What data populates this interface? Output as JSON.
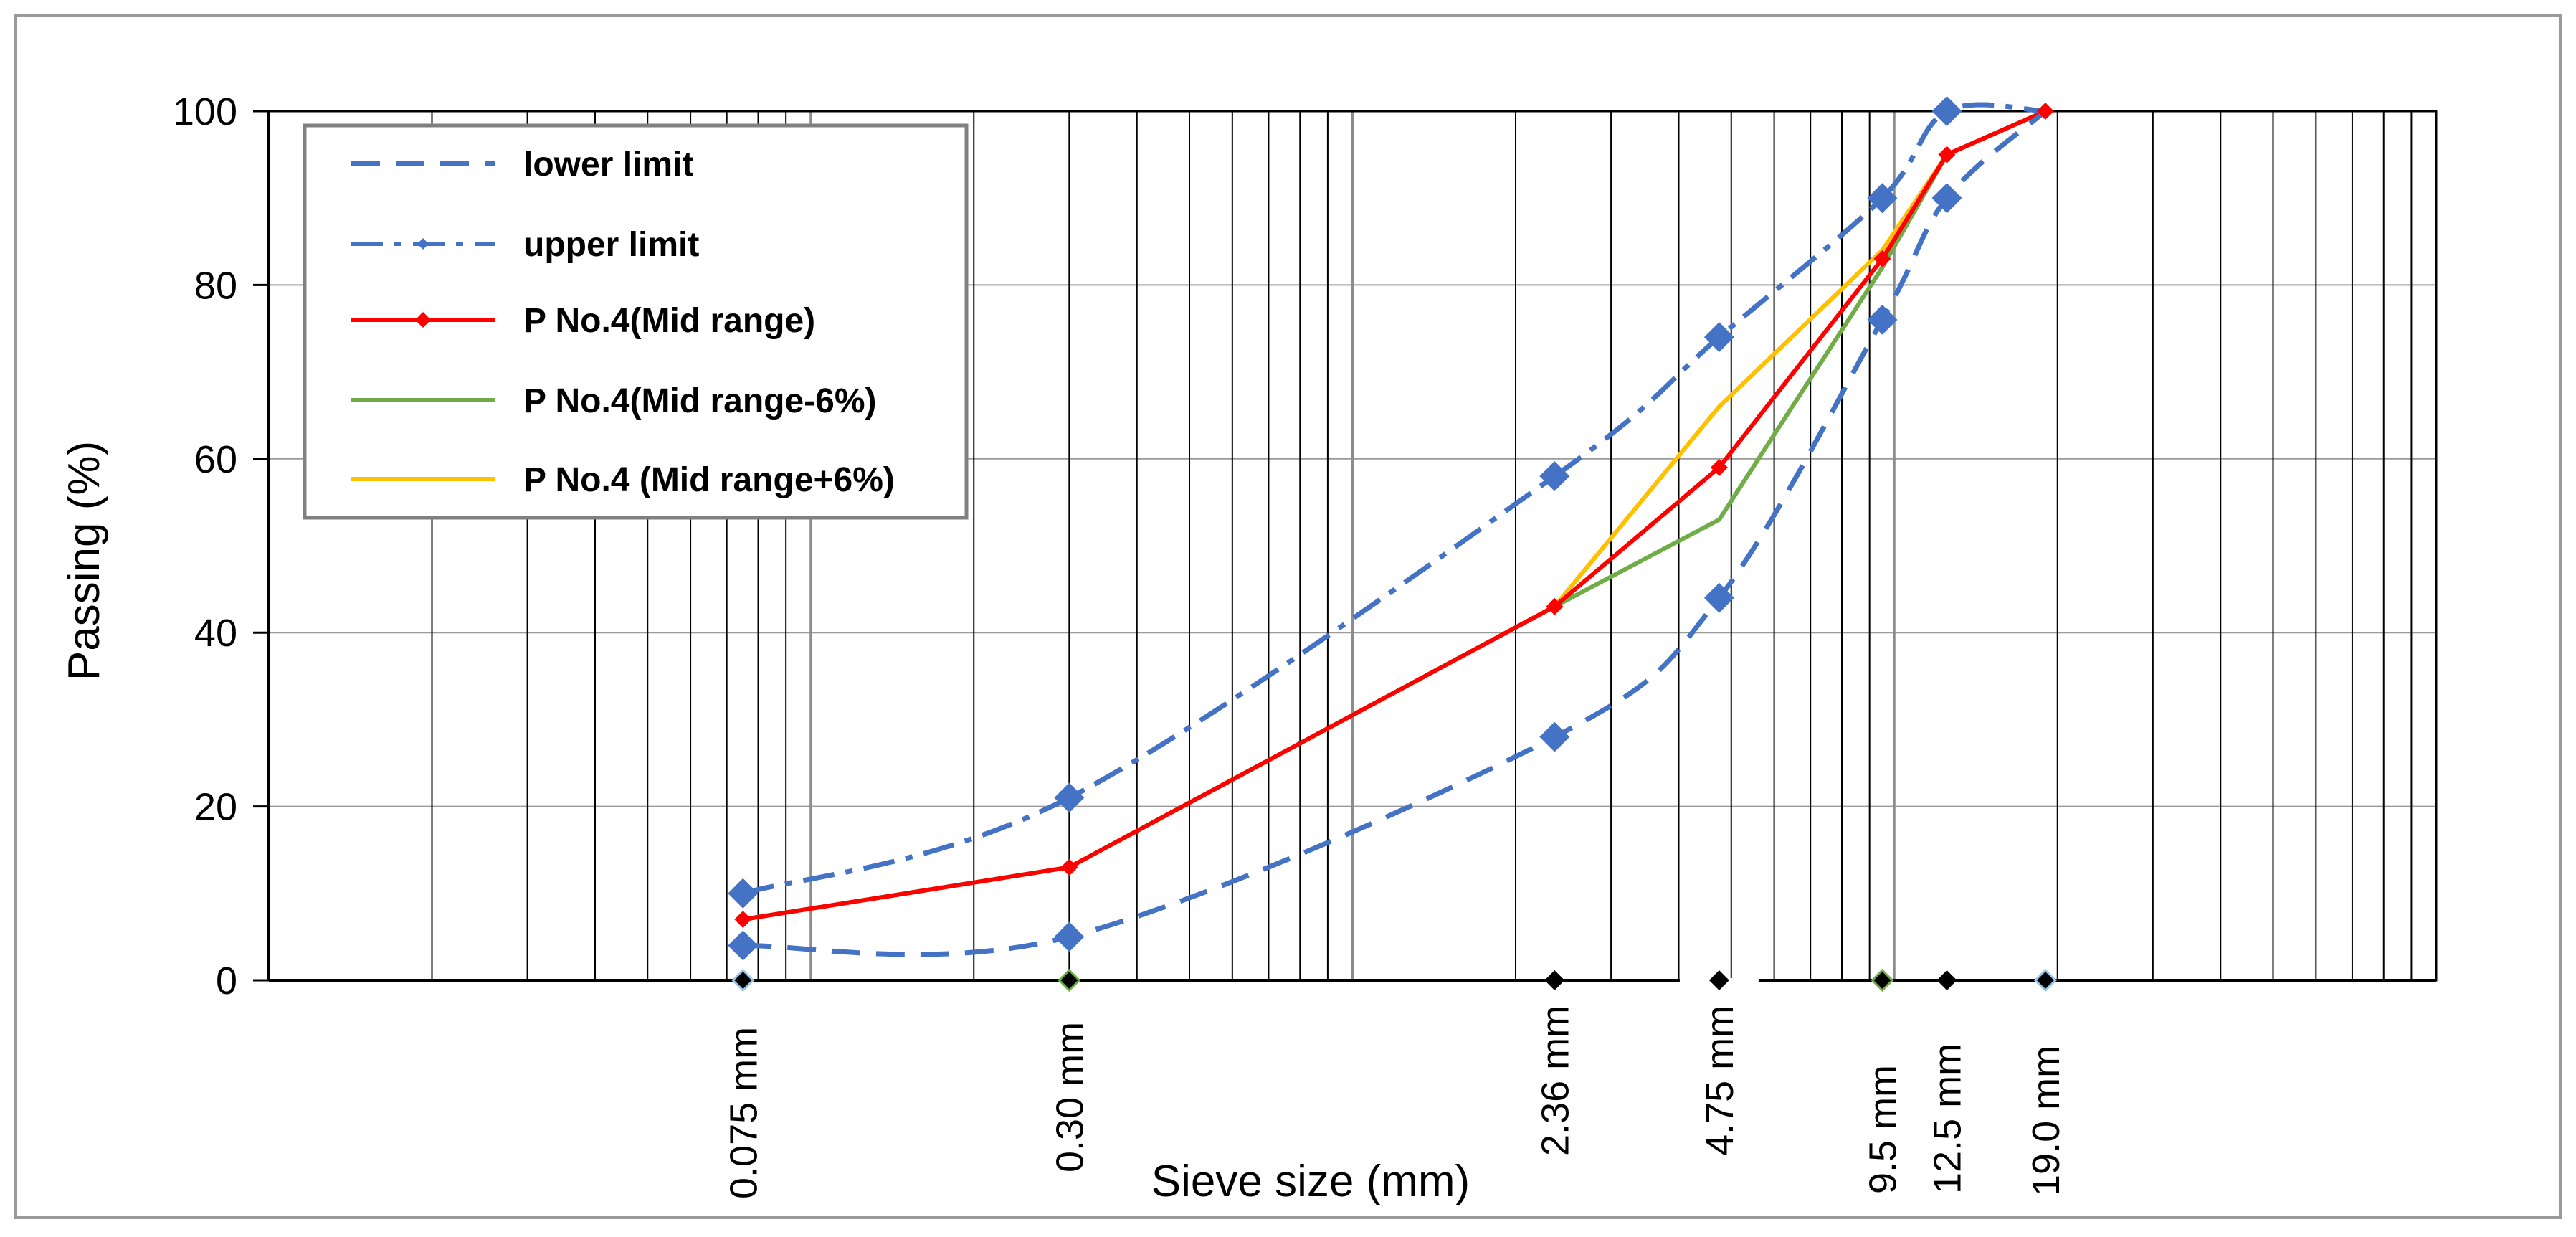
{
  "chart_data": {
    "type": "line",
    "title": "",
    "xlabel": "Sieve size (mm)",
    "ylabel": "Passing (%)",
    "x_scale": "log",
    "xlim": [
      0.01,
      100
    ],
    "ylim": [
      0,
      100
    ],
    "y_ticks": [
      0,
      20,
      40,
      60,
      80,
      100
    ],
    "grid": true,
    "legend_position": "top-left",
    "sieve_sizes_mm": [
      0.075,
      0.3,
      2.36,
      4.75,
      9.5,
      12.5,
      19.0
    ],
    "sieve_labels": [
      "0.075 mm",
      "0.30 mm",
      "2.36 mm",
      "4.75 mm",
      "9.5 mm",
      "12.5 mm",
      "19.0 mm"
    ],
    "series": [
      {
        "name": "lower limit",
        "color": "#4472C4",
        "style": "dashed",
        "marker": "none",
        "x": [
          0.075,
          0.3,
          2.36,
          4.75,
          9.5,
          12.5,
          19.0
        ],
        "values": [
          4,
          5,
          28,
          44,
          76,
          90,
          100
        ]
      },
      {
        "name": "upper limit",
        "color": "#4472C4",
        "style": "dash-dot",
        "marker": "diamond",
        "x": [
          0.075,
          0.3,
          2.36,
          4.75,
          9.5,
          12.5,
          19.0
        ],
        "values": [
          10,
          21,
          58,
          74,
          90,
          100,
          100
        ]
      },
      {
        "name": "P No.4(Mid range)",
        "color": "#FF0000",
        "style": "solid",
        "marker": "diamond",
        "x": [
          0.075,
          0.3,
          2.36,
          4.75,
          9.5,
          12.5,
          19.0
        ],
        "values": [
          7,
          13,
          43,
          59,
          83,
          95,
          100
        ]
      },
      {
        "name": "P No.4(Mid range-6%)",
        "color": "#70AD47",
        "style": "solid",
        "marker": "none",
        "x": [
          0.075,
          0.3,
          2.36,
          4.75,
          9.5,
          12.5,
          19.0
        ],
        "values": [
          7,
          13,
          43,
          53,
          82,
          95,
          100
        ]
      },
      {
        "name": "P No.4 (Mid range+6%)",
        "color": "#FFC000",
        "style": "solid",
        "marker": "none",
        "x": [
          0.075,
          0.3,
          2.36,
          4.75,
          9.5,
          12.5,
          19.0
        ],
        "values": [
          7,
          13,
          43,
          66,
          84,
          95,
          100
        ]
      }
    ]
  }
}
